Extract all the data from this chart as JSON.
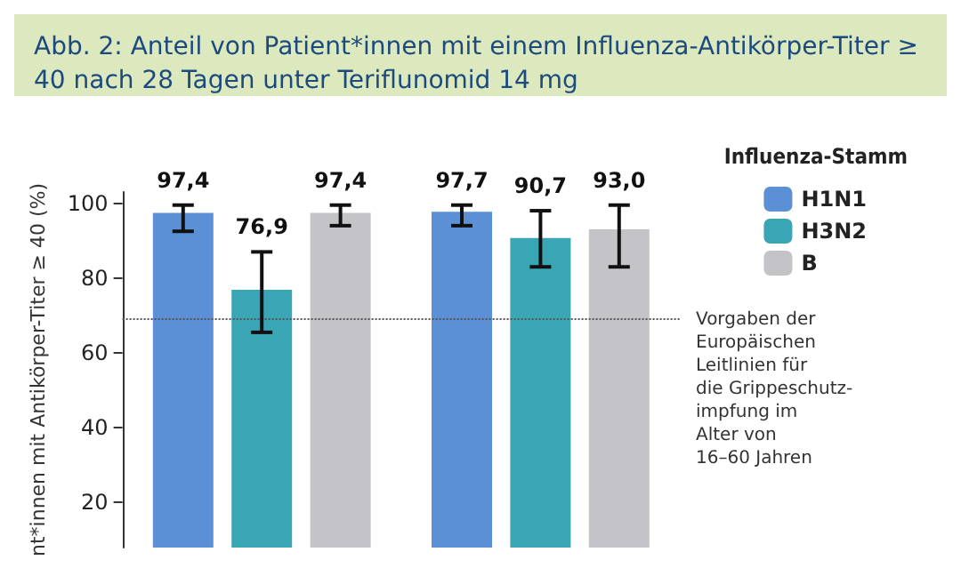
{
  "chart_data": {
    "type": "bar",
    "title": "Abb. 2: Anteil von Patient*innen mit einem Influenza-Antikörper-Titer ≥ 40 nach 28 Tagen unter Teriflunomid 14 mg",
    "ylabel": "nt*innen mit Antikörper-Titer ≥ 40 (%)",
    "legend_title": "Influenza-Stamm",
    "categories": [
      null,
      null
    ],
    "series": [
      {
        "name": "H1N1",
        "color": "#5b8fd6",
        "values": [
          97.4,
          97.7
        ],
        "errors": [
          [
            92.5,
            99.5
          ],
          [
            94,
            99.5
          ]
        ],
        "value_labels": [
          "97,4",
          "97,7"
        ]
      },
      {
        "name": "H3N2",
        "color": "#3aa6b5",
        "values": [
          76.9,
          90.7
        ],
        "errors": [
          [
            65.5,
            87
          ],
          [
            83,
            98
          ]
        ],
        "value_labels": [
          "76,9",
          "90,7"
        ]
      },
      {
        "name": "B",
        "color": "#c4c4c8",
        "values": [
          97.4,
          93.0
        ],
        "errors": [
          [
            94,
            99.5
          ],
          [
            83,
            99.5
          ]
        ],
        "value_labels": [
          "97,4",
          "93,0"
        ]
      }
    ],
    "ylim": [
      8,
      103
    ],
    "yticks": [
      20,
      40,
      60,
      80,
      100
    ],
    "legend": "right",
    "grid": false,
    "ref_lines": [
      {
        "axis": "y",
        "value": 69,
        "label": "Vorgaben der\nEuropäischen\nLeitlinien für\ndie Grippeschutz-\nimpfung im\nAlter von\n16–60 Jahren",
        "color": "#555555",
        "line_style": "dotted"
      }
    ]
  }
}
